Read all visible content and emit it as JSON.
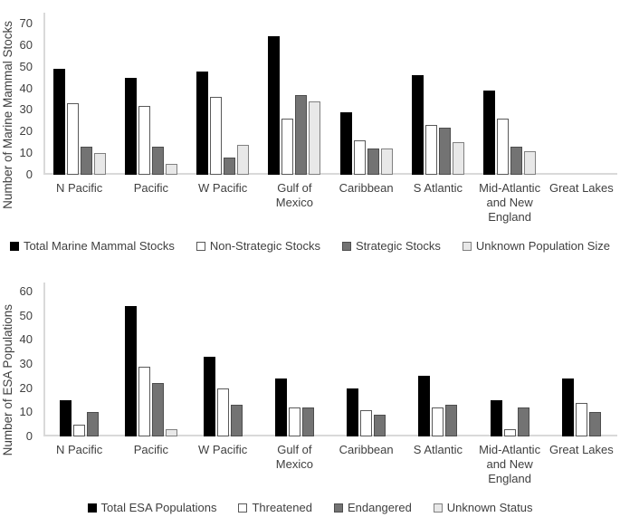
{
  "chart_data": [
    {
      "type": "bar",
      "title": "",
      "xlabel": "",
      "ylabel": "Number of Marine Mammal Stocks",
      "ylim": [
        0,
        70
      ],
      "ytick_step": 10,
      "grid": false,
      "legend_position": "bottom",
      "categories": [
        "N Pacific",
        "Pacific",
        "W Pacific",
        "Gulf of Mexico",
        "Caribbean",
        "S Atlantic",
        "Mid-Atlantic and New England",
        "Great Lakes"
      ],
      "series": [
        {
          "name": "Total Marine Mammal Stocks",
          "fill": "#000000",
          "border": "#000000",
          "values": [
            49,
            45,
            48,
            64,
            29,
            46,
            39,
            0
          ]
        },
        {
          "name": "Non-Strategic Stocks",
          "fill": "#ffffff",
          "border": "#595959",
          "values": [
            33,
            32,
            36,
            26,
            16,
            23,
            26,
            0
          ]
        },
        {
          "name": "Strategic Stocks",
          "fill": "#737373",
          "border": "#4d4d4d",
          "values": [
            13,
            13,
            8,
            37,
            12,
            22,
            13,
            0
          ]
        },
        {
          "name": "Unknown Population Size",
          "fill": "#e8e8e8",
          "border": "#808080",
          "values": [
            10,
            5,
            14,
            34,
            12,
            15,
            11,
            0
          ]
        }
      ]
    },
    {
      "type": "bar",
      "title": "",
      "xlabel": "",
      "ylabel": "Number of ESA Populations",
      "ylim": [
        0,
        60
      ],
      "ytick_step": 10,
      "grid": false,
      "legend_position": "bottom",
      "categories": [
        "N Pacific",
        "Pacific",
        "W Pacific",
        "Gulf of Mexico",
        "Caribbean",
        "S Atlantic",
        "Mid-Atlantic and New England",
        "Great Lakes"
      ],
      "series": [
        {
          "name": "Total ESA Populations",
          "fill": "#000000",
          "border": "#000000",
          "values": [
            15,
            54,
            33,
            24,
            20,
            25,
            15,
            24
          ]
        },
        {
          "name": "Threatened",
          "fill": "#ffffff",
          "border": "#595959",
          "values": [
            5,
            29,
            20,
            12,
            11,
            12,
            3,
            14
          ]
        },
        {
          "name": "Endangered",
          "fill": "#737373",
          "border": "#4d4d4d",
          "values": [
            10,
            22,
            13,
            12,
            9,
            13,
            12,
            10
          ]
        },
        {
          "name": "Unknown Status",
          "fill": "#e8e8e8",
          "border": "#808080",
          "values": [
            0,
            3,
            0,
            0,
            0,
            0,
            0,
            0
          ]
        }
      ]
    }
  ],
  "colors": {
    "axis_line": "#d9d9d9",
    "text": "#404040",
    "background": "#ffffff"
  }
}
